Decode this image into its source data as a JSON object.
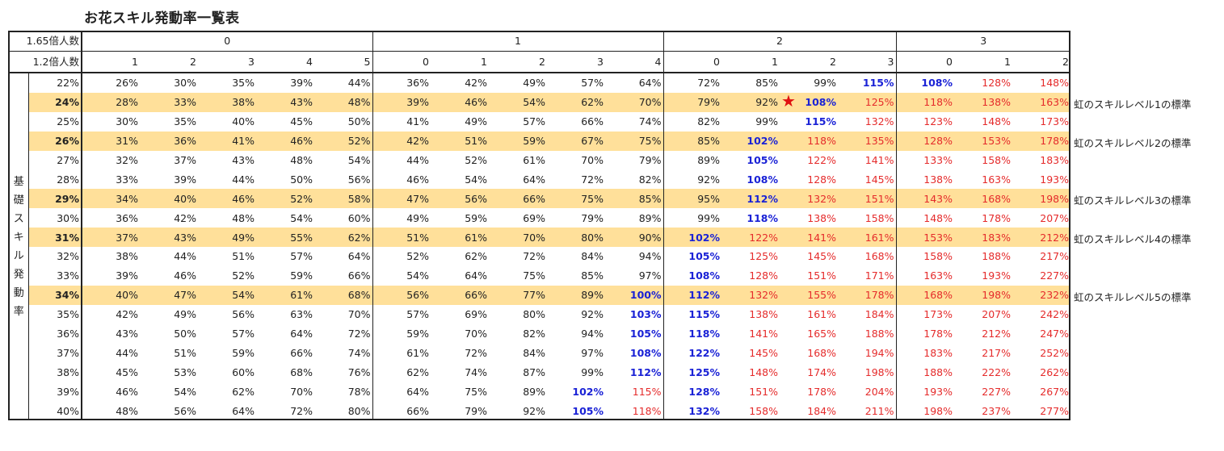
{
  "title": "お花スキル発動率一覧表",
  "header": {
    "row1_label": "1.65倍人数",
    "row2_label": "1.2倍人数",
    "groups": [
      {
        "label": "0",
        "subs": [
          "1",
          "2",
          "3",
          "4",
          "5"
        ]
      },
      {
        "label": "1",
        "subs": [
          "0",
          "1",
          "2",
          "3",
          "4"
        ]
      },
      {
        "label": "2",
        "subs": [
          "0",
          "1",
          "2",
          "3"
        ]
      },
      {
        "label": "3",
        "subs": [
          "0",
          "1",
          "2"
        ]
      }
    ]
  },
  "side_label": [
    "基",
    "礎",
    "ス",
    "キ",
    "ル",
    "発",
    "動",
    "率"
  ],
  "rows": [
    {
      "base": "22%",
      "values": [
        "26%",
        "30%",
        "35%",
        "39%",
        "44%",
        "36%",
        "42%",
        "49%",
        "57%",
        "64%",
        "72%",
        "85%",
        "99%",
        "115%",
        "108%",
        "128%",
        "148%"
      ],
      "styles": [
        "",
        "",
        "",
        "",
        "",
        "",
        "",
        "",
        "",
        "",
        "",
        "",
        "",
        "b",
        "b",
        "r",
        "r"
      ]
    },
    {
      "base": "24%",
      "highlight": true,
      "note": "虹のスキルレベル1の標準",
      "values": [
        "28%",
        "33%",
        "38%",
        "43%",
        "48%",
        "39%",
        "46%",
        "54%",
        "62%",
        "70%",
        "79%",
        "92%",
        "108%",
        "125%",
        "118%",
        "138%",
        "163%"
      ],
      "styles": [
        "",
        "",
        "",
        "",
        "",
        "",
        "",
        "",
        "",
        "",
        "",
        "",
        "b",
        "r",
        "r",
        "r",
        "r"
      ]
    },
    {
      "base": "25%",
      "values": [
        "30%",
        "35%",
        "40%",
        "45%",
        "50%",
        "41%",
        "49%",
        "57%",
        "66%",
        "74%",
        "82%",
        "99%",
        "115%",
        "132%",
        "123%",
        "148%",
        "173%"
      ],
      "styles": [
        "",
        "",
        "",
        "",
        "",
        "",
        "",
        "",
        "",
        "",
        "",
        "",
        "b",
        "r",
        "r",
        "r",
        "r"
      ]
    },
    {
      "base": "26%",
      "highlight": true,
      "note": "虹のスキルレベル2の標準",
      "values": [
        "31%",
        "36%",
        "41%",
        "46%",
        "52%",
        "42%",
        "51%",
        "59%",
        "67%",
        "75%",
        "85%",
        "102%",
        "118%",
        "135%",
        "128%",
        "153%",
        "178%"
      ],
      "styles": [
        "",
        "",
        "",
        "",
        "",
        "",
        "",
        "",
        "",
        "",
        "",
        "b",
        "r",
        "r",
        "r",
        "r",
        "r"
      ]
    },
    {
      "base": "27%",
      "values": [
        "32%",
        "37%",
        "43%",
        "48%",
        "54%",
        "44%",
        "52%",
        "61%",
        "70%",
        "79%",
        "89%",
        "105%",
        "122%",
        "141%",
        "133%",
        "158%",
        "183%"
      ],
      "styles": [
        "",
        "",
        "",
        "",
        "",
        "",
        "",
        "",
        "",
        "",
        "",
        "b",
        "r",
        "r",
        "r",
        "r",
        "r"
      ]
    },
    {
      "base": "28%",
      "values": [
        "33%",
        "39%",
        "44%",
        "50%",
        "56%",
        "46%",
        "54%",
        "64%",
        "72%",
        "82%",
        "92%",
        "108%",
        "128%",
        "145%",
        "138%",
        "163%",
        "193%"
      ],
      "styles": [
        "",
        "",
        "",
        "",
        "",
        "",
        "",
        "",
        "",
        "",
        "",
        "b",
        "r",
        "r",
        "r",
        "r",
        "r"
      ]
    },
    {
      "base": "29%",
      "highlight": true,
      "note": "虹のスキルレベル3の標準",
      "values": [
        "34%",
        "40%",
        "46%",
        "52%",
        "58%",
        "47%",
        "56%",
        "66%",
        "75%",
        "85%",
        "95%",
        "112%",
        "132%",
        "151%",
        "143%",
        "168%",
        "198%"
      ],
      "styles": [
        "",
        "",
        "",
        "",
        "",
        "",
        "",
        "",
        "",
        "",
        "",
        "b",
        "r",
        "r",
        "r",
        "r",
        "r"
      ]
    },
    {
      "base": "30%",
      "values": [
        "36%",
        "42%",
        "48%",
        "54%",
        "60%",
        "49%",
        "59%",
        "69%",
        "79%",
        "89%",
        "99%",
        "118%",
        "138%",
        "158%",
        "148%",
        "178%",
        "207%"
      ],
      "styles": [
        "",
        "",
        "",
        "",
        "",
        "",
        "",
        "",
        "",
        "",
        "",
        "b",
        "r",
        "r",
        "r",
        "r",
        "r"
      ]
    },
    {
      "base": "31%",
      "highlight": true,
      "note": "虹のスキルレベル4の標準",
      "values": [
        "37%",
        "43%",
        "49%",
        "55%",
        "62%",
        "51%",
        "61%",
        "70%",
        "80%",
        "90%",
        "102%",
        "122%",
        "141%",
        "161%",
        "153%",
        "183%",
        "212%"
      ],
      "styles": [
        "",
        "",
        "",
        "",
        "",
        "",
        "",
        "",
        "",
        "",
        "b",
        "r",
        "r",
        "r",
        "r",
        "r",
        "r"
      ]
    },
    {
      "base": "32%",
      "values": [
        "38%",
        "44%",
        "51%",
        "57%",
        "64%",
        "52%",
        "62%",
        "72%",
        "84%",
        "94%",
        "105%",
        "125%",
        "145%",
        "168%",
        "158%",
        "188%",
        "217%"
      ],
      "styles": [
        "",
        "",
        "",
        "",
        "",
        "",
        "",
        "",
        "",
        "",
        "b",
        "r",
        "r",
        "r",
        "r",
        "r",
        "r"
      ]
    },
    {
      "base": "33%",
      "values": [
        "39%",
        "46%",
        "52%",
        "59%",
        "66%",
        "54%",
        "64%",
        "75%",
        "85%",
        "97%",
        "108%",
        "128%",
        "151%",
        "171%",
        "163%",
        "193%",
        "227%"
      ],
      "styles": [
        "",
        "",
        "",
        "",
        "",
        "",
        "",
        "",
        "",
        "",
        "b",
        "r",
        "r",
        "r",
        "r",
        "r",
        "r"
      ]
    },
    {
      "base": "34%",
      "highlight": true,
      "note": "虹のスキルレベル5の標準",
      "values": [
        "40%",
        "47%",
        "54%",
        "61%",
        "68%",
        "56%",
        "66%",
        "77%",
        "89%",
        "100%",
        "112%",
        "132%",
        "155%",
        "178%",
        "168%",
        "198%",
        "232%"
      ],
      "styles": [
        "",
        "",
        "",
        "",
        "",
        "",
        "",
        "",
        "",
        "b",
        "b",
        "r",
        "r",
        "r",
        "r",
        "r",
        "r"
      ]
    },
    {
      "base": "35%",
      "values": [
        "42%",
        "49%",
        "56%",
        "63%",
        "70%",
        "57%",
        "69%",
        "80%",
        "92%",
        "103%",
        "115%",
        "138%",
        "161%",
        "184%",
        "173%",
        "207%",
        "242%"
      ],
      "styles": [
        "",
        "",
        "",
        "",
        "",
        "",
        "",
        "",
        "",
        "b",
        "b",
        "r",
        "r",
        "r",
        "r",
        "r",
        "r"
      ]
    },
    {
      "base": "36%",
      "values": [
        "43%",
        "50%",
        "57%",
        "64%",
        "72%",
        "59%",
        "70%",
        "82%",
        "94%",
        "105%",
        "118%",
        "141%",
        "165%",
        "188%",
        "178%",
        "212%",
        "247%"
      ],
      "styles": [
        "",
        "",
        "",
        "",
        "",
        "",
        "",
        "",
        "",
        "b",
        "b",
        "r",
        "r",
        "r",
        "r",
        "r",
        "r"
      ]
    },
    {
      "base": "37%",
      "values": [
        "44%",
        "51%",
        "59%",
        "66%",
        "74%",
        "61%",
        "72%",
        "84%",
        "97%",
        "108%",
        "122%",
        "145%",
        "168%",
        "194%",
        "183%",
        "217%",
        "252%"
      ],
      "styles": [
        "",
        "",
        "",
        "",
        "",
        "",
        "",
        "",
        "",
        "b",
        "b",
        "r",
        "r",
        "r",
        "r",
        "r",
        "r"
      ]
    },
    {
      "base": "38%",
      "values": [
        "45%",
        "53%",
        "60%",
        "68%",
        "76%",
        "62%",
        "74%",
        "87%",
        "99%",
        "112%",
        "125%",
        "148%",
        "174%",
        "198%",
        "188%",
        "222%",
        "262%"
      ],
      "styles": [
        "",
        "",
        "",
        "",
        "",
        "",
        "",
        "",
        "",
        "b",
        "b",
        "r",
        "r",
        "r",
        "r",
        "r",
        "r"
      ]
    },
    {
      "base": "39%",
      "values": [
        "46%",
        "54%",
        "62%",
        "70%",
        "78%",
        "64%",
        "75%",
        "89%",
        "102%",
        "115%",
        "128%",
        "151%",
        "178%",
        "204%",
        "193%",
        "227%",
        "267%"
      ],
      "styles": [
        "",
        "",
        "",
        "",
        "",
        "",
        "",
        "",
        "b",
        "r",
        "b",
        "r",
        "r",
        "r",
        "r",
        "r",
        "r"
      ]
    },
    {
      "base": "40%",
      "values": [
        "48%",
        "56%",
        "64%",
        "72%",
        "80%",
        "66%",
        "79%",
        "92%",
        "105%",
        "118%",
        "132%",
        "158%",
        "184%",
        "211%",
        "198%",
        "237%",
        "277%"
      ],
      "styles": [
        "",
        "",
        "",
        "",
        "",
        "",
        "",
        "",
        "b",
        "r",
        "b",
        "r",
        "r",
        "r",
        "r",
        "r",
        "r"
      ]
    }
  ],
  "colors": {
    "highlight": "#ffe09a",
    "blue": "#1a22d6",
    "red": "#e52b2b",
    "star": "#e01010"
  },
  "marker": {
    "glyph": "★",
    "row": 1,
    "col": 12
  }
}
